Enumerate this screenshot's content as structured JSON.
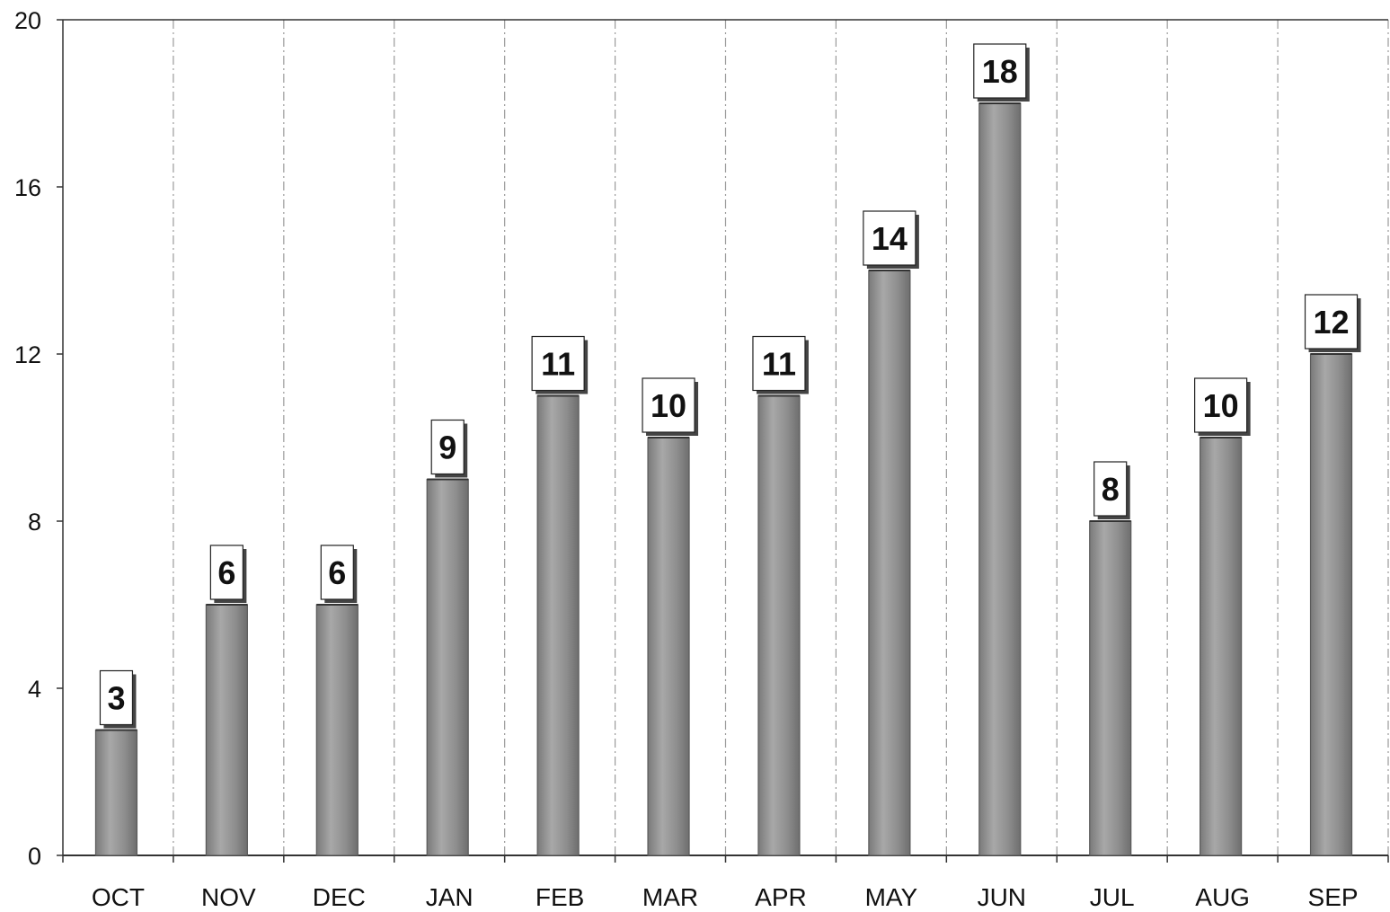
{
  "chart_data": {
    "type": "bar",
    "title": "",
    "xlabel": "",
    "ylabel": "",
    "categories": [
      "OCT",
      "NOV",
      "DEC",
      "JAN",
      "FEB",
      "MAR",
      "APR",
      "MAY",
      "JUN",
      "JUL",
      "AUG",
      "SEP"
    ],
    "values": [
      3,
      6,
      6,
      9,
      11,
      10,
      11,
      14,
      18,
      8,
      10,
      12
    ],
    "data_labels": [
      "3",
      "6",
      "6",
      "9",
      "11",
      "10",
      "11",
      "14",
      "18",
      "8",
      "10",
      "12"
    ],
    "ylim": [
      0,
      20
    ],
    "yticks": [
      0,
      4,
      8,
      12,
      16,
      20
    ],
    "ytick_labels": [
      "0",
      "4",
      "8",
      "12",
      "16",
      "20"
    ],
    "grid": {
      "vertical": true,
      "horizontal": false,
      "style": "dash-dot"
    },
    "legend": "none",
    "colors": {
      "bar_fill": "#8c8c8c",
      "bar_edge": "#5a5a5a",
      "bar_highlight": "#b4b4b4",
      "grid": "#9a9a9a",
      "axis": "#333333",
      "label_box_fill": "#ffffff",
      "label_box_border": "#222222"
    }
  }
}
